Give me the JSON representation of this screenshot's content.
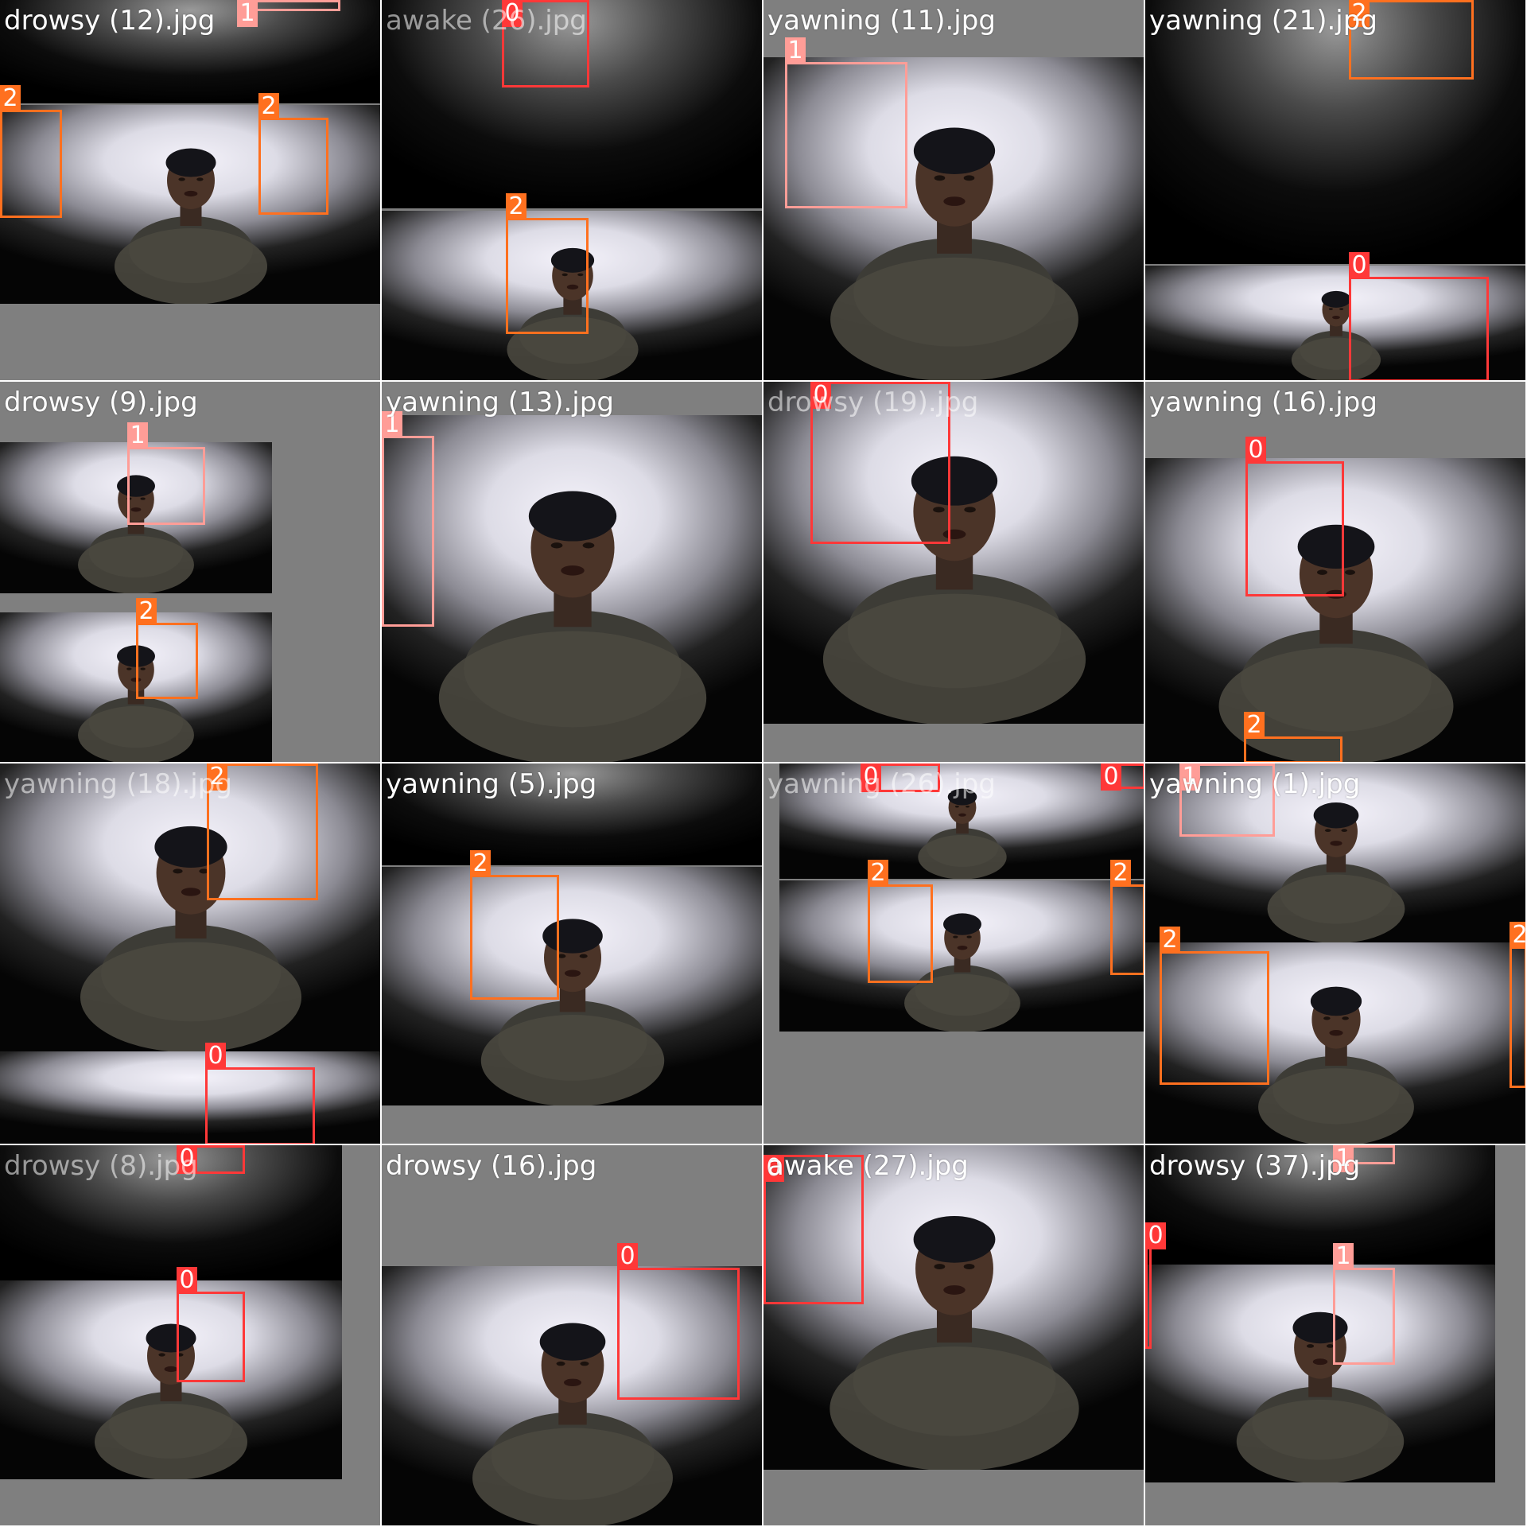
{
  "grid": {
    "columns": 4,
    "rows": 4,
    "class_colors": {
      "0": "#ff3838",
      "1": "#ff9d97",
      "2": "#ff701f"
    },
    "tiles": [
      {
        "filename": "drowsy (12).jpg",
        "labels": [
          "1",
          "2",
          "2"
        ]
      },
      {
        "filename": "awake (26).jpg",
        "labels": [
          "0",
          "2"
        ]
      },
      {
        "filename": "yawning (11).jpg",
        "labels": [
          "1"
        ]
      },
      {
        "filename": "yawning (21).jpg",
        "labels": [
          "2",
          "0"
        ]
      },
      {
        "filename": "drowsy (9).jpg",
        "labels": [
          "1",
          "2"
        ]
      },
      {
        "filename": "yawning (13).jpg",
        "labels": [
          "1"
        ]
      },
      {
        "filename": "drowsy (19).jpg",
        "labels": [
          "0"
        ]
      },
      {
        "filename": "yawning (16).jpg",
        "labels": [
          "0",
          "2"
        ]
      },
      {
        "filename": "yawning (18).jpg",
        "labels": [
          "2",
          "0"
        ]
      },
      {
        "filename": "yawning (5).jpg",
        "labels": [
          "2"
        ]
      },
      {
        "filename": "yawning (26).jpg",
        "labels": [
          "0",
          "0",
          "2",
          "2"
        ]
      },
      {
        "filename": "yawning (1).jpg",
        "labels": [
          "1",
          "2",
          "2",
          "2"
        ]
      },
      {
        "filename": "drowsy (8).jpg",
        "labels": [
          "0",
          "0"
        ]
      },
      {
        "filename": "drowsy (16).jpg",
        "labels": [
          "0"
        ]
      },
      {
        "filename": "awake (27).jpg",
        "labels": [
          "0"
        ]
      },
      {
        "filename": "drowsy (37).jpg",
        "labels": [
          "1",
          "0",
          "1"
        ]
      }
    ]
  }
}
